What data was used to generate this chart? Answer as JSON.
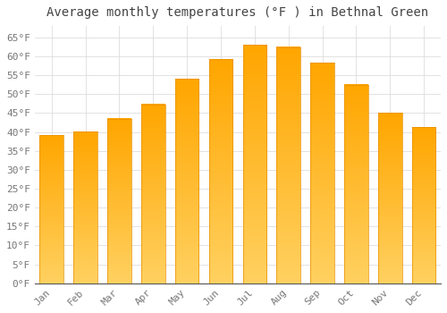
{
  "title": "Average monthly temperatures (°F ) in Bethnal Green",
  "months": [
    "Jan",
    "Feb",
    "Mar",
    "Apr",
    "May",
    "Jun",
    "Jul",
    "Aug",
    "Sep",
    "Oct",
    "Nov",
    "Dec"
  ],
  "values": [
    39.2,
    40.1,
    43.5,
    47.3,
    54.1,
    59.2,
    63.0,
    62.4,
    58.3,
    52.5,
    45.0,
    41.2
  ],
  "bar_color_top": "#FFA500",
  "bar_color_bottom": "#FFD060",
  "bar_edge_color": "#E89000",
  "background_color": "#FFFFFF",
  "grid_color": "#DDDDDD",
  "text_color": "#777777",
  "title_color": "#444444",
  "ylim": [
    0,
    68
  ],
  "yticks": [
    0,
    5,
    10,
    15,
    20,
    25,
    30,
    35,
    40,
    45,
    50,
    55,
    60,
    65
  ],
  "title_fontsize": 10,
  "tick_fontsize": 8
}
